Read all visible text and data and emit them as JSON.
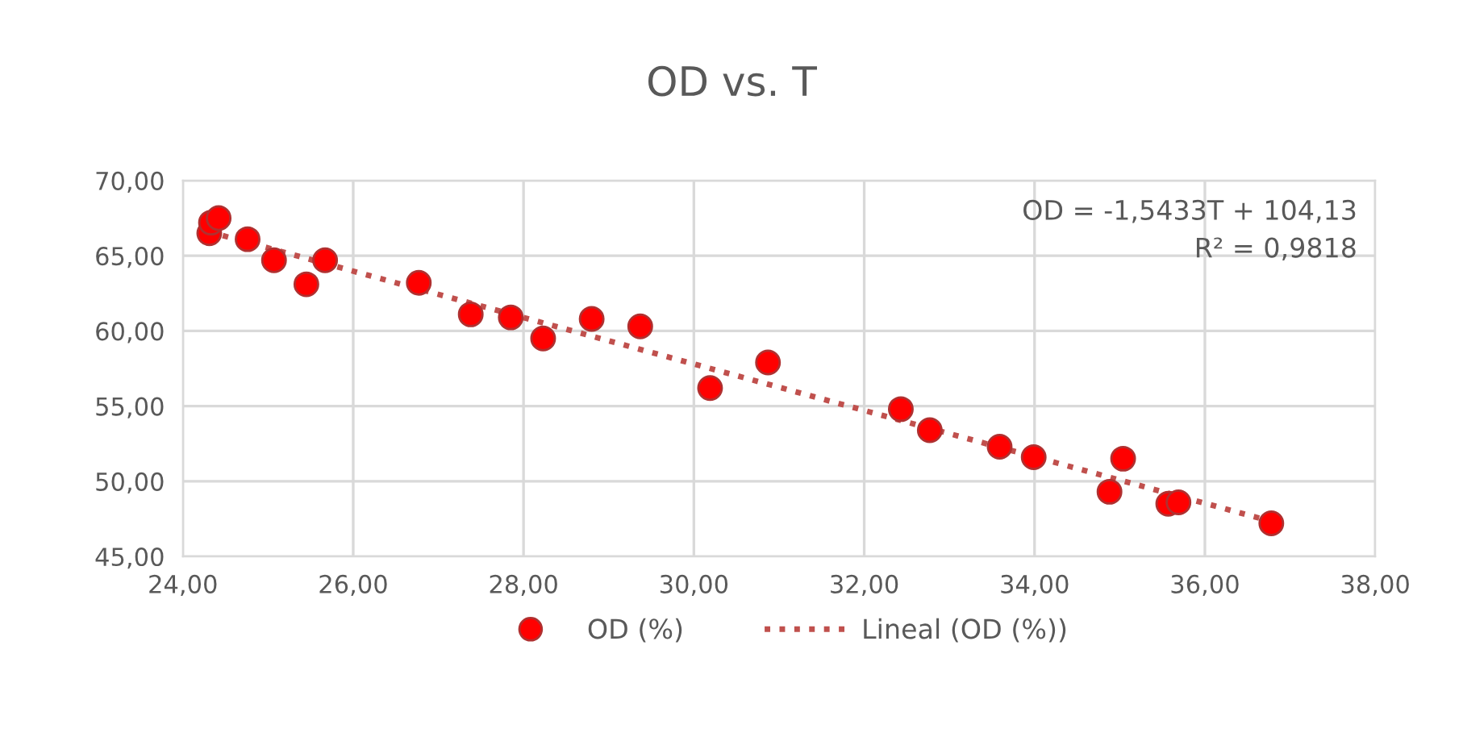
{
  "chart_data": {
    "type": "scatter",
    "title": "OD vs. T",
    "xlim": [
      24,
      38
    ],
    "xticks": [
      {
        "value": 24,
        "label": "24,00"
      },
      {
        "value": 26,
        "label": "26,00"
      },
      {
        "value": 28,
        "label": "28,00"
      },
      {
        "value": 30,
        "label": "30,00"
      },
      {
        "value": 32,
        "label": "32,00"
      },
      {
        "value": 34,
        "label": "34,00"
      },
      {
        "value": 36,
        "label": "36,00"
      },
      {
        "value": 38,
        "label": "38,00"
      }
    ],
    "ylim": [
      45,
      70
    ],
    "yticks": [
      {
        "value": 45,
        "label": "45,00"
      },
      {
        "value": 50,
        "label": "50,00"
      },
      {
        "value": 55,
        "label": "55,00"
      },
      {
        "value": 60,
        "label": "60,00"
      },
      {
        "value": 65,
        "label": "65,00"
      },
      {
        "value": 70,
        "label": "70,00"
      }
    ],
    "grid": true,
    "legend": "bottom",
    "series": [
      {
        "name": "OD (%)",
        "marker": "circle",
        "color": "#ff0000",
        "x": [
          24.31,
          24.33,
          24.42,
          24.76,
          25.07,
          25.45,
          25.67,
          26.77,
          27.38,
          27.85,
          28.23,
          28.8,
          29.37,
          30.19,
          30.87,
          32.43,
          32.77,
          33.59,
          33.99,
          34.88,
          35.04,
          35.57,
          35.69,
          36.78
        ],
        "values": [
          66.5,
          67.2,
          67.5,
          66.1,
          64.7,
          63.1,
          64.7,
          63.2,
          61.1,
          60.9,
          59.5,
          60.8,
          60.3,
          56.2,
          57.9,
          54.8,
          53.4,
          52.3,
          51.6,
          49.3,
          51.5,
          48.5,
          48.6,
          47.2
        ]
      },
      {
        "name": "Lineal (OD (%))",
        "type": "line",
        "line_style": "dotted",
        "color": "#c0504d",
        "x": [
          24.3,
          36.8
        ],
        "values": [
          66.6,
          47.3
        ]
      }
    ],
    "annotations": [
      "OD = -1,5433T + 104,13",
      "R² = 0,9818"
    ]
  }
}
